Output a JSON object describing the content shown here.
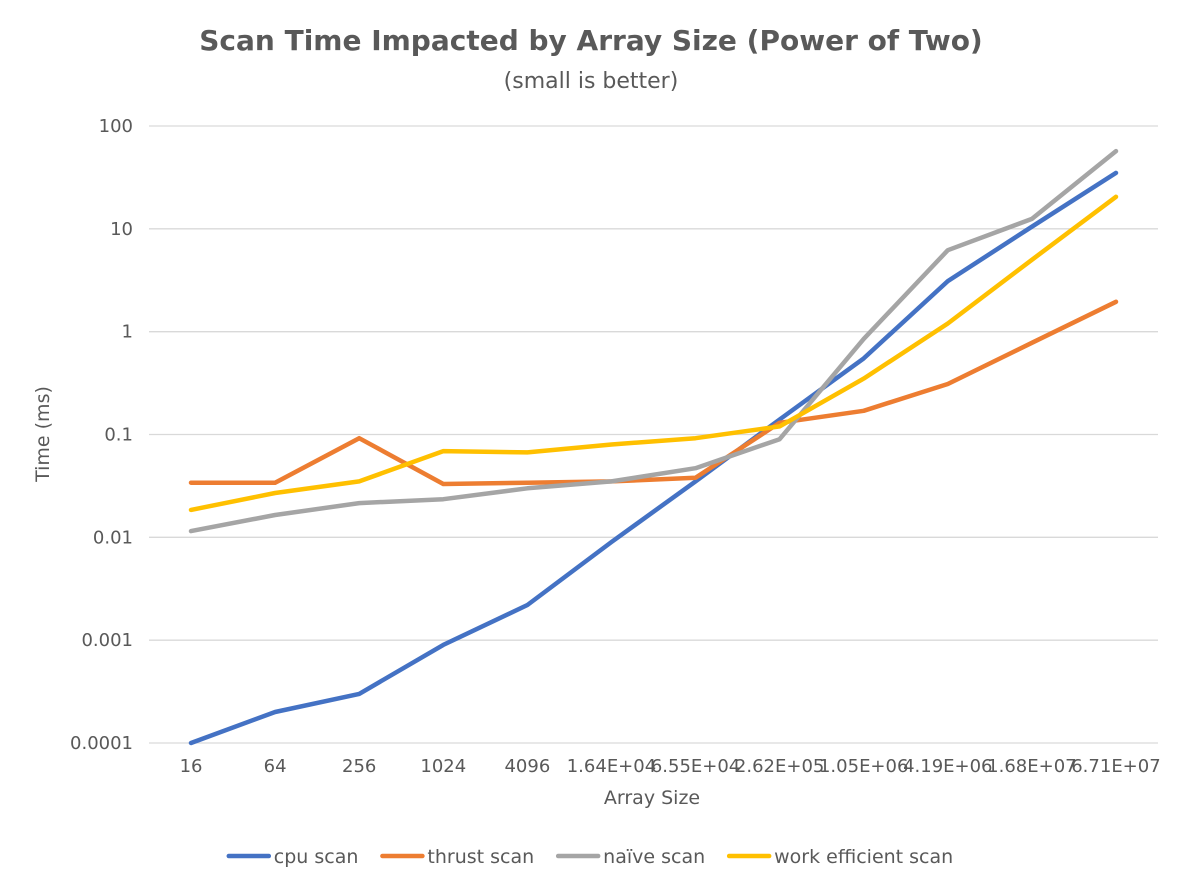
{
  "chart_data": {
    "type": "line",
    "title": "Scan Time Impacted by Array Size (Power of Two)",
    "subtitle": "(small is better)",
    "xlabel": "Array Size",
    "ylabel": "Time (ms)",
    "y_scale": "log",
    "ylim": [
      0.0001,
      100
    ],
    "y_ticks": [
      "100",
      "10",
      "1",
      "0.1",
      "0.01",
      "0.001",
      "0.0001"
    ],
    "y_tick_values": [
      100,
      10,
      1,
      0.1,
      0.01,
      0.001,
      0.0001
    ],
    "grid": true,
    "legend_position": "bottom",
    "categories": [
      "16",
      "64",
      "256",
      "1024",
      "4096",
      "1.64E+04",
      "6.55E+04",
      "2.62E+05",
      "1.05E+06",
      "4.19E+06",
      "1.68E+07",
      "6.71E+07"
    ],
    "series": [
      {
        "name": "cpu scan",
        "color": "#4472c4",
        "values": [
          0.0001,
          0.0002,
          0.0003,
          0.0009,
          0.0022,
          0.009,
          0.035,
          0.14,
          0.55,
          3.1,
          10.5,
          35
        ]
      },
      {
        "name": "thrust scan",
        "color": "#ed7d31",
        "values": [
          0.034,
          0.034,
          0.092,
          0.033,
          0.034,
          0.035,
          0.038,
          0.13,
          0.17,
          0.31,
          0.78,
          1.95
        ]
      },
      {
        "name": "naïve scan",
        "color": "#a5a5a5",
        "values": [
          0.0115,
          0.0165,
          0.0215,
          0.0235,
          0.03,
          0.035,
          0.047,
          0.09,
          0.85,
          6.2,
          12.5,
          57
        ]
      },
      {
        "name": "work efficient scan",
        "color": "#ffc000",
        "values": [
          0.0185,
          0.027,
          0.035,
          0.069,
          0.067,
          0.08,
          0.092,
          0.12,
          0.35,
          1.2,
          5.0,
          20.5
        ]
      }
    ]
  }
}
